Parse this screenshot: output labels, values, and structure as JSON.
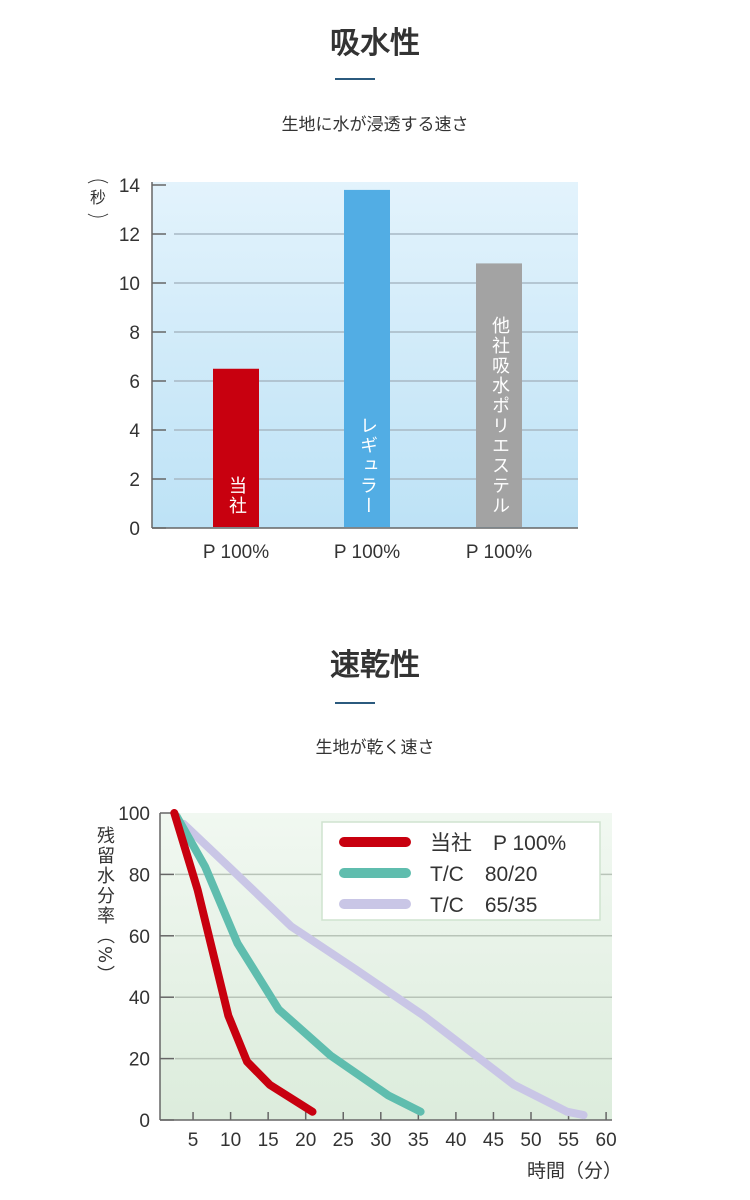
{
  "sections": [
    {
      "title": "吸水性",
      "subtitle": "生地に水が浸透する速さ"
    },
    {
      "title": "速乾性",
      "subtitle": "生地が乾く速さ"
    }
  ],
  "chart_data": [
    {
      "type": "bar",
      "ylabel": "秒",
      "ylim": [
        0,
        14
      ],
      "yticks": [
        0,
        2,
        4,
        6,
        8,
        10,
        12,
        14
      ],
      "grid": true,
      "categories": [
        "P 100%",
        "P 100%",
        "P 100%"
      ],
      "bar_labels": [
        "当社",
        "レギュラー",
        "他社吸水ポリエステル"
      ],
      "values": [
        6.5,
        13.8,
        10.8
      ],
      "colors": [
        "#c8000f",
        "#52ade4",
        "#a3a3a3"
      ]
    },
    {
      "type": "line",
      "xlabel": "時間（分）",
      "ylabel": "残留水分率（%）",
      "xlim": [
        0,
        60
      ],
      "ylim": [
        0,
        100
      ],
      "xticks": [
        5,
        10,
        15,
        20,
        25,
        30,
        35,
        40,
        45,
        50,
        55,
        60
      ],
      "yticks": [
        0,
        20,
        40,
        60,
        80,
        100
      ],
      "grid": true,
      "legend_position": "top-right",
      "series": [
        {
          "name": "当社　P 100%",
          "color": "#c8000f",
          "x": [
            2.5,
            5.6,
            9.7,
            12.2,
            15.2,
            20.9
          ],
          "y": [
            100,
            75,
            34,
            19,
            11.5,
            2.7
          ]
        },
        {
          "name": "T/C　80/20",
          "color": "#5fbdae",
          "x": [
            2.8,
            6.6,
            10.9,
            16.4,
            23.3,
            31,
            35.3
          ],
          "y": [
            99,
            82.5,
            57.6,
            36,
            21,
            8,
            2.7
          ]
        },
        {
          "name": "T/C　65/35",
          "color": "#c9c6e6",
          "x": [
            3.7,
            10.4,
            18.1,
            26.7,
            35.7,
            47.7,
            54.8,
            57
          ],
          "y": [
            96.5,
            81,
            63,
            49,
            34,
            11.5,
            2.7,
            1.6
          ]
        }
      ]
    }
  ]
}
